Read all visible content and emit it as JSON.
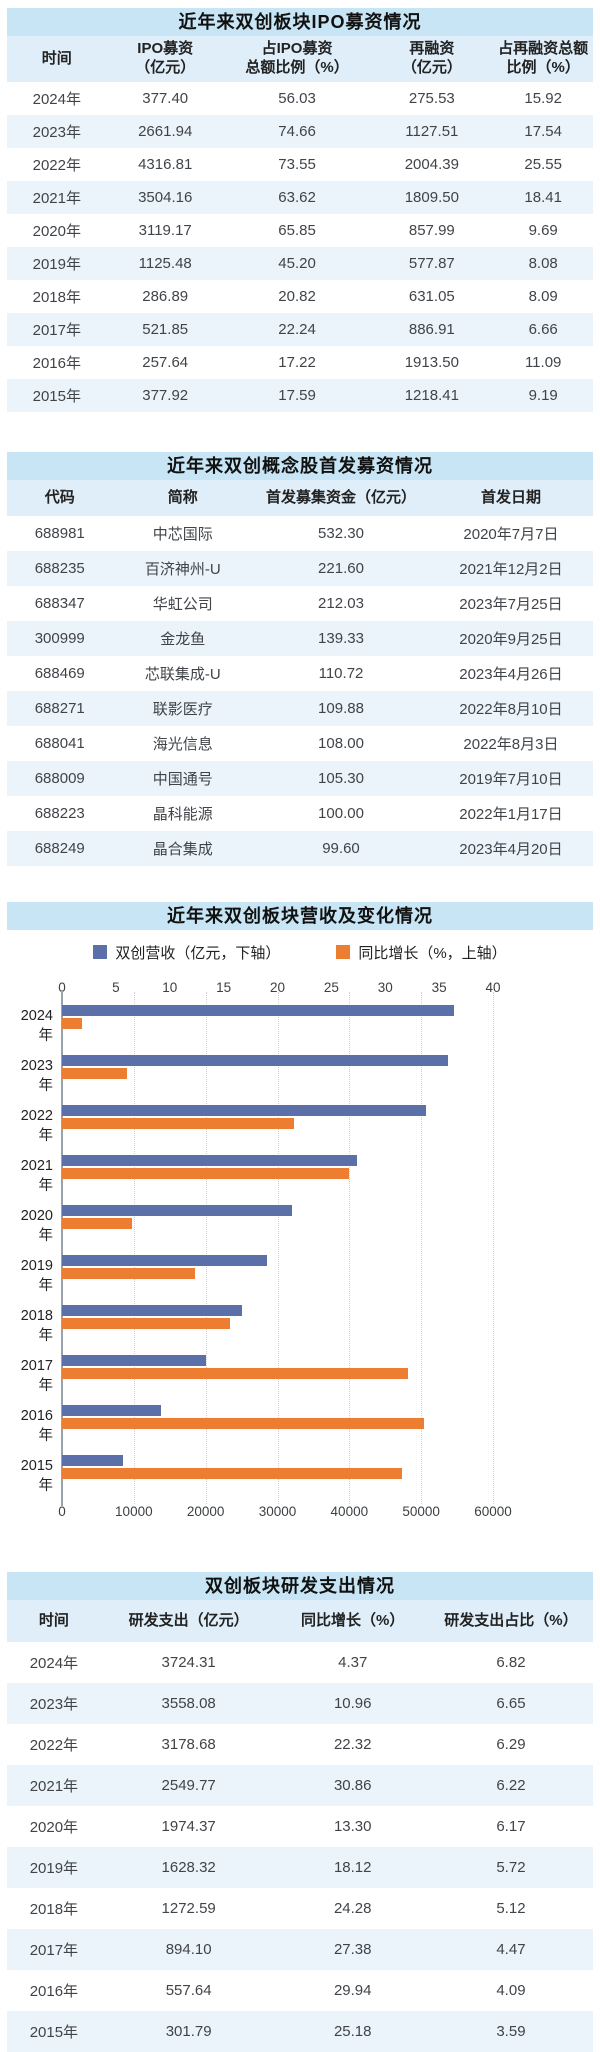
{
  "colors": {
    "title_bar": "#c7e5f4",
    "header_row": "#dfeef8",
    "alt_row": "#ebf4fa",
    "bar_blue": "#5b6fa8",
    "bar_orange": "#ed7d31"
  },
  "ipo_table": {
    "title": "近年来双创板块IPO募资情况",
    "headers": [
      "时间",
      "IPO募资\n（亿元）",
      "占IPO募资\n总额比例（%）",
      "再融资\n（亿元）",
      "占再融资总额\n比例（%）"
    ],
    "rows": [
      [
        "2024年",
        "377.40",
        "56.03",
        "275.53",
        "15.92"
      ],
      [
        "2023年",
        "2661.94",
        "74.66",
        "1127.51",
        "17.54"
      ],
      [
        "2022年",
        "4316.81",
        "73.55",
        "2004.39",
        "25.55"
      ],
      [
        "2021年",
        "3504.16",
        "63.62",
        "1809.50",
        "18.41"
      ],
      [
        "2020年",
        "3119.17",
        "65.85",
        "857.99",
        "9.69"
      ],
      [
        "2019年",
        "1125.48",
        "45.20",
        "577.87",
        "8.08"
      ],
      [
        "2018年",
        "286.89",
        "20.82",
        "631.05",
        "8.09"
      ],
      [
        "2017年",
        "521.85",
        "22.24",
        "886.91",
        "6.66"
      ],
      [
        "2016年",
        "257.64",
        "17.22",
        "1913.50",
        "11.09"
      ],
      [
        "2015年",
        "377.92",
        "17.59",
        "1218.41",
        "9.19"
      ]
    ]
  },
  "stock_table": {
    "title": "近年来双创概念股首发募资情况",
    "headers": [
      "代码",
      "简称",
      "首发募集资金（亿元）",
      "首发日期"
    ],
    "rows": [
      [
        "688981",
        "中芯国际",
        "532.30",
        "2020年7月7日"
      ],
      [
        "688235",
        "百济神州-U",
        "221.60",
        "2021年12月2日"
      ],
      [
        "688347",
        "华虹公司",
        "212.03",
        "2023年7月25日"
      ],
      [
        "300999",
        "金龙鱼",
        "139.33",
        "2020年9月25日"
      ],
      [
        "688469",
        "芯联集成-U",
        "110.72",
        "2023年4月26日"
      ],
      [
        "688271",
        "联影医疗",
        "109.88",
        "2022年8月10日"
      ],
      [
        "688041",
        "海光信息",
        "108.00",
        "2022年8月3日"
      ],
      [
        "688009",
        "中国通号",
        "105.30",
        "2019年7月10日"
      ],
      [
        "688223",
        "晶科能源",
        "100.00",
        "2022年1月17日"
      ],
      [
        "688249",
        "晶合集成",
        "99.60",
        "2023年4月20日"
      ]
    ]
  },
  "chart_data": {
    "type": "bar",
    "orientation": "horizontal",
    "title": "近年来双创板块营收及变化情况",
    "categories": [
      "2024年",
      "2023年",
      "2022年",
      "2021年",
      "2020年",
      "2019年",
      "2018年",
      "2017年",
      "2016年",
      "2015年"
    ],
    "series": [
      {
        "name": "双创营收（亿元，下轴）",
        "axis": "bottom",
        "color": "#5b6fa8",
        "values": [
          54600,
          53700,
          50700,
          41000,
          32000,
          28500,
          25000,
          20000,
          13800,
          8500
        ]
      },
      {
        "name": "同比增长（%，上轴）",
        "axis": "top",
        "color": "#ed7d31",
        "values": [
          1.9,
          6.0,
          21.5,
          26.6,
          6.5,
          12.3,
          15.6,
          32.1,
          33.6,
          31.6
        ]
      }
    ],
    "top_axis": {
      "ticks": [
        0,
        5,
        10,
        15,
        20,
        25,
        30,
        35,
        40
      ],
      "range": [
        0,
        40
      ]
    },
    "bottom_axis": {
      "ticks": [
        0,
        10000,
        20000,
        30000,
        40000,
        50000,
        60000
      ],
      "range": [
        0,
        60000
      ]
    },
    "grid": "vertical-dotted",
    "legend_position": "top"
  },
  "rd_table": {
    "title": "双创板块研发支出情况",
    "headers": [
      "时间",
      "研发支出（亿元）",
      "同比增长（%）",
      "研发支出占比（%）"
    ],
    "rows": [
      [
        "2024年",
        "3724.31",
        "4.37",
        "6.82"
      ],
      [
        "2023年",
        "3558.08",
        "10.96",
        "6.65"
      ],
      [
        "2022年",
        "3178.68",
        "22.32",
        "6.29"
      ],
      [
        "2021年",
        "2549.77",
        "30.86",
        "6.22"
      ],
      [
        "2020年",
        "1974.37",
        "13.30",
        "6.17"
      ],
      [
        "2019年",
        "1628.32",
        "18.12",
        "5.72"
      ],
      [
        "2018年",
        "1272.59",
        "24.28",
        "5.12"
      ],
      [
        "2017年",
        "894.10",
        "27.38",
        "4.47"
      ],
      [
        "2016年",
        "557.64",
        "29.94",
        "4.09"
      ],
      [
        "2015年",
        "301.79",
        "25.18",
        "3.59"
      ]
    ]
  }
}
